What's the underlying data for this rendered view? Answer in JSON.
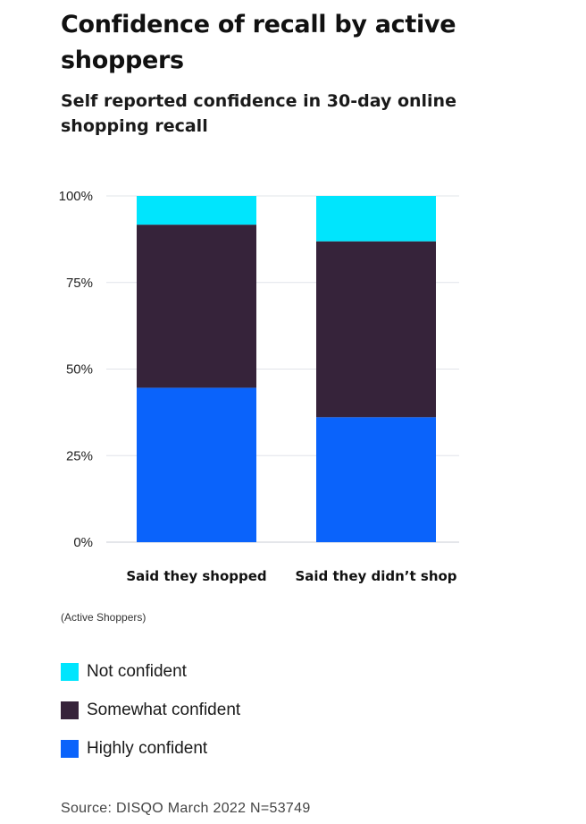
{
  "title": "Confidence of recall by active shoppers",
  "subtitle": "Self reported confidence in 30-day online shopping recall",
  "note": "(Active Shoppers)",
  "source": "Source: DISQO March 2022 N=53749",
  "chart_data": {
    "type": "bar",
    "stacked": true,
    "categories": [
      "Said they shopped",
      "Said they didn’t shop"
    ],
    "series": [
      {
        "name": "Highly confident",
        "values": [
          44.6,
          36.1
        ],
        "color": "#0a63fb"
      },
      {
        "name": "Somewhat confident",
        "values": [
          47.1,
          50.8
        ],
        "color": "#36233a"
      },
      {
        "name": "Not confident",
        "values": [
          8.3,
          13.1
        ],
        "color": "#00e5fd"
      }
    ],
    "yticks": [
      "0%",
      "25%",
      "50%",
      "75%",
      "100%"
    ],
    "ylim": [
      0,
      100
    ],
    "grid": true,
    "legend_placement": "bottom"
  },
  "legend": [
    {
      "label": "Not confident",
      "color": "#00e5fd"
    },
    {
      "label": "Somewhat confident",
      "color": "#36233a"
    },
    {
      "label": "Highly confident",
      "color": "#0a63fb"
    }
  ]
}
